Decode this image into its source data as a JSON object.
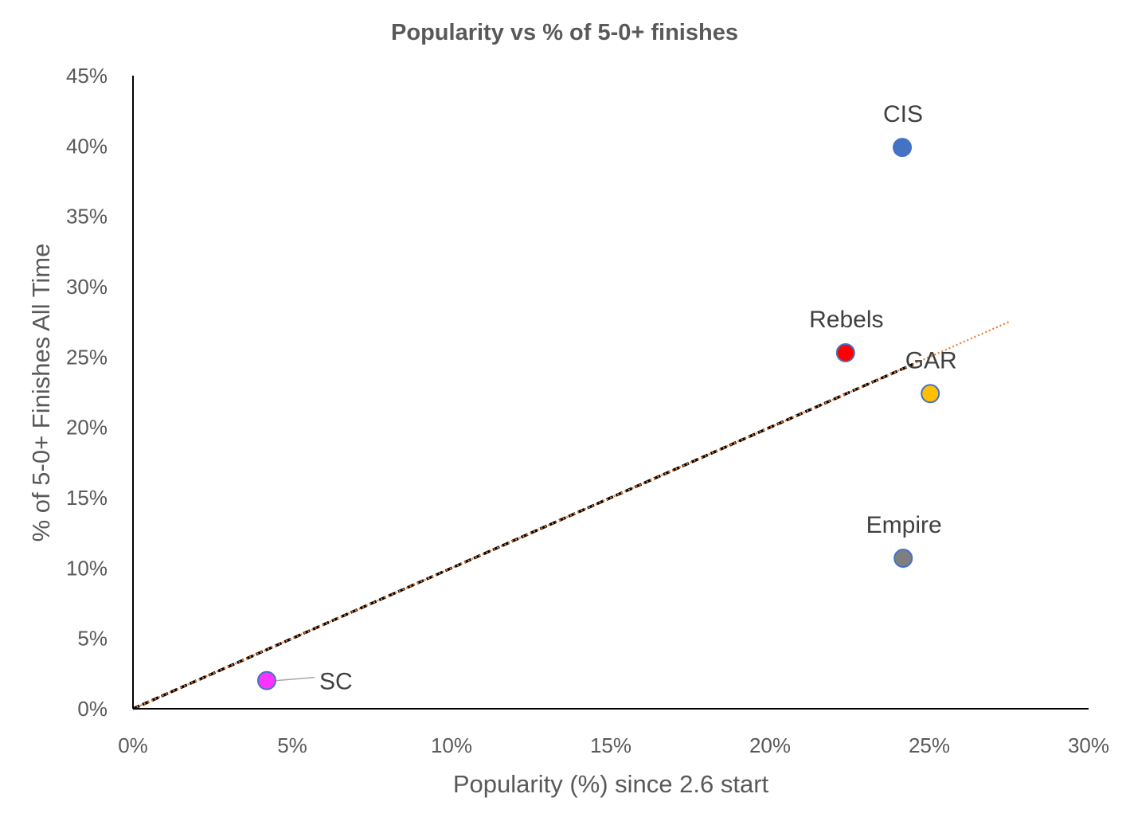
{
  "chart_data": {
    "type": "scatter",
    "title": "Popularity vs % of 5-0+ finishes",
    "xlabel": "Popularity (%) since 2.6 start",
    "ylabel": "% of 5-0+ Finishes All Time",
    "xlim": [
      0,
      0.3
    ],
    "ylim": [
      0,
      0.45
    ],
    "x_ticks": [
      {
        "value": 0.0,
        "label": "0%"
      },
      {
        "value": 0.05,
        "label": "5%"
      },
      {
        "value": 0.1,
        "label": "10%"
      },
      {
        "value": 0.15,
        "label": "15%"
      },
      {
        "value": 0.2,
        "label": "20%"
      },
      {
        "value": 0.25,
        "label": "25%"
      },
      {
        "value": 0.3,
        "label": "30%"
      }
    ],
    "y_ticks": [
      {
        "value": 0.0,
        "label": "0%"
      },
      {
        "value": 0.05,
        "label": "5%"
      },
      {
        "value": 0.1,
        "label": "10%"
      },
      {
        "value": 0.15,
        "label": "15%"
      },
      {
        "value": 0.2,
        "label": "20%"
      },
      {
        "value": 0.25,
        "label": "25%"
      },
      {
        "value": 0.3,
        "label": "30%"
      },
      {
        "value": 0.35,
        "label": "35%"
      },
      {
        "value": 0.4,
        "label": "40%"
      },
      {
        "value": 0.45,
        "label": "45%"
      }
    ],
    "grid": false,
    "legend": "none",
    "points": [
      {
        "label": "CIS",
        "x": 0.2415,
        "y": 0.399,
        "color": "#4472C4",
        "label_position": "above"
      },
      {
        "label": "Rebels",
        "x": 0.2237,
        "y": 0.253,
        "color": "#FF0000",
        "label_position": "above"
      },
      {
        "label": "GAR",
        "x": 0.2503,
        "y": 0.224,
        "color": "#FFC000",
        "label_position": "above"
      },
      {
        "label": "Empire",
        "x": 0.2418,
        "y": 0.107,
        "color": "#7F7F7F",
        "label_position": "above"
      },
      {
        "label": "SC",
        "x": 0.042,
        "y": 0.02,
        "color": "#FF33FF",
        "label_position": "right-leader"
      }
    ],
    "point_outline_color": "#4472C4",
    "trendlines": [
      {
        "type": "linear",
        "style": "dashed",
        "color": "#000000",
        "from": [
          0,
          0
        ],
        "to": [
          0.245,
          0.245
        ]
      },
      {
        "type": "linear",
        "style": "dotted",
        "color": "#ED7D31",
        "from": [
          0,
          0
        ],
        "to": [
          0.275,
          0.275
        ]
      }
    ]
  }
}
